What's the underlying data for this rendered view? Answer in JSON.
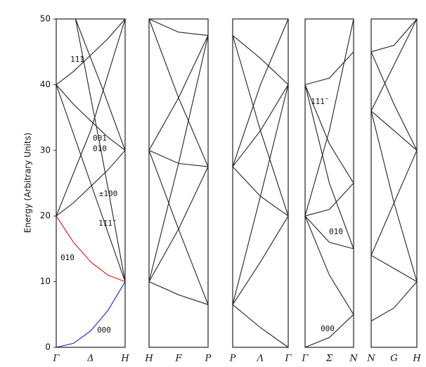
{
  "chart_data": {
    "type": "line",
    "ylabel": "Energy (Arbitrary Units)",
    "ylim": [
      0,
      50
    ],
    "yticks": [
      0,
      10,
      20,
      30,
      40,
      50
    ],
    "panels": [
      {
        "points": [
          "Γ",
          "Δ",
          "H"
        ],
        "annotations": [
          "1̄11",
          "001",
          "010",
          "±100",
          "1̄11̄",
          "01̄0",
          "000"
        ],
        "curves": [
          {
            "color": "#1a1acc",
            "x": [
              0,
              0.25,
              0.5,
              0.75,
              1
            ],
            "values": [
              0,
              0.6,
              2.5,
              5.6,
              10
            ]
          },
          {
            "color": "#dd1111",
            "x": [
              0,
              0.25,
              0.5,
              0.75,
              1
            ],
            "values": [
              20,
              16,
              13,
              11,
              10
            ]
          },
          {
            "color": "#222222",
            "x": [
              0,
              0.25,
              0.5,
              0.75,
              1
            ],
            "values": [
              20,
              22,
              24.5,
              27,
              30
            ]
          },
          {
            "color": "#222222",
            "x": [
              0,
              0.25,
              0.5,
              0.75,
              1
            ],
            "values": [
              40,
              37,
              34.5,
              32,
              30
            ]
          },
          {
            "color": "#222222",
            "x": [
              0,
              0.25,
              0.5,
              0.75,
              1
            ],
            "values": [
              40,
              42,
              44.5,
              47,
              50
            ]
          },
          {
            "color": "#222222",
            "x": [
              0,
              0.5,
              1
            ],
            "values": [
              40,
              25,
              10
            ]
          },
          {
            "color": "#222222",
            "x": [
              0,
              0.5,
              1
            ],
            "values": [
              20,
              33,
              50
            ]
          },
          {
            "color": "#222222",
            "x": [
              0.28,
              0.65,
              1
            ],
            "values": [
              50,
              40,
              30
            ]
          },
          {
            "color": "#222222",
            "x": [
              0.28,
              0.65,
              1
            ],
            "values": [
              50,
              30,
              10
            ]
          }
        ]
      },
      {
        "points": [
          "H",
          "F",
          "P"
        ],
        "annotations": [],
        "curves": [
          {
            "color": "#222222",
            "x": [
              0,
              0.5,
              1
            ],
            "values": [
              10,
              18,
              27.5
            ]
          },
          {
            "color": "#222222",
            "x": [
              0,
              0.5,
              1
            ],
            "values": [
              10,
              8,
              6.5
            ]
          },
          {
            "color": "#222222",
            "x": [
              0,
              0.5,
              1
            ],
            "values": [
              30,
              18,
              6.5
            ]
          },
          {
            "color": "#222222",
            "x": [
              0,
              0.5,
              1
            ],
            "values": [
              30,
              28,
              27.5
            ]
          },
          {
            "color": "#222222",
            "x": [
              0,
              0.5,
              1
            ],
            "values": [
              30,
              38,
              47.5
            ]
          },
          {
            "color": "#222222",
            "x": [
              0,
              0.5,
              1
            ],
            "values": [
              50,
              48,
              47.5
            ]
          },
          {
            "color": "#222222",
            "x": [
              0,
              0.5,
              1
            ],
            "values": [
              50,
              38,
              27.5
            ]
          },
          {
            "color": "#222222",
            "x": [
              0,
              0.5,
              1
            ],
            "values": [
              10,
              28,
              47.5
            ]
          }
        ]
      },
      {
        "points": [
          "P",
          "Λ",
          "Γ"
        ],
        "annotations": [],
        "curves": [
          {
            "color": "#222222",
            "x": [
              0,
              0.5,
              1
            ],
            "values": [
              6.5,
              3,
              0
            ]
          },
          {
            "color": "#222222",
            "x": [
              0,
              0.5,
              1
            ],
            "values": [
              6.5,
              13,
              20
            ]
          },
          {
            "color": "#222222",
            "x": [
              0,
              0.5,
              1
            ],
            "values": [
              27.5,
              23,
              20
            ]
          },
          {
            "color": "#222222",
            "x": [
              0,
              0.5,
              1
            ],
            "values": [
              27.5,
              33,
              40
            ]
          },
          {
            "color": "#222222",
            "x": [
              0,
              0.5,
              1
            ],
            "values": [
              47.5,
              33,
              20
            ]
          },
          {
            "color": "#222222",
            "x": [
              0,
              0.5,
              1
            ],
            "values": [
              6.5,
              23,
              40
            ]
          },
          {
            "color": "#222222",
            "x": [
              0,
              0.5,
              1
            ],
            "values": [
              27.5,
              40,
              50
            ]
          },
          {
            "color": "#222222",
            "x": [
              0,
              0.5,
              1
            ],
            "values": [
              47.5,
              44,
              40
            ]
          }
        ]
      },
      {
        "points": [
          "Γ",
          "Σ",
          "N"
        ],
        "annotations": [
          "1̄11̄",
          "01̄0",
          "000"
        ],
        "curves": [
          {
            "color": "#222222",
            "x": [
              0,
              0.5,
              1
            ],
            "values": [
              0,
              1.5,
              5
            ]
          },
          {
            "color": "#222222",
            "x": [
              0,
              0.5,
              1
            ],
            "values": [
              20,
              11,
              5
            ]
          },
          {
            "color": "#222222",
            "x": [
              0,
              0.5,
              1
            ],
            "values": [
              20,
              16,
              15
            ]
          },
          {
            "color": "#222222",
            "x": [
              0,
              0.5,
              1
            ],
            "values": [
              20,
              21,
              25
            ]
          },
          {
            "color": "#222222",
            "x": [
              0,
              0.5,
              1
            ],
            "values": [
              40,
              25,
              15
            ]
          },
          {
            "color": "#222222",
            "x": [
              0,
              0.5,
              1
            ],
            "values": [
              40,
              31,
              25
            ]
          },
          {
            "color": "#222222",
            "x": [
              0,
              0.5,
              1
            ],
            "values": [
              40,
              41,
              45
            ]
          },
          {
            "color": "#222222",
            "x": [
              0,
              0.5,
              1
            ],
            "values": [
              20,
              33,
              50
            ]
          }
        ]
      },
      {
        "points": [
          "N",
          "G",
          "H"
        ],
        "annotations": [],
        "curves": [
          {
            "color": "#222222",
            "x": [
              0,
              0.5,
              1
            ],
            "values": [
              4,
              6,
              10
            ]
          },
          {
            "color": "#222222",
            "x": [
              0,
              0.5,
              1
            ],
            "values": [
              14,
              12,
              10
            ]
          },
          {
            "color": "#222222",
            "x": [
              0,
              0.5,
              1
            ],
            "values": [
              14,
              22,
              30
            ]
          },
          {
            "color": "#222222",
            "x": [
              0,
              0.5,
              1
            ],
            "values": [
              36,
              22,
              10
            ]
          },
          {
            "color": "#222222",
            "x": [
              0,
              0.5,
              1
            ],
            "values": [
              36,
              33,
              30
            ]
          },
          {
            "color": "#222222",
            "x": [
              0,
              0.5,
              1
            ],
            "values": [
              36,
              43,
              50
            ]
          },
          {
            "color": "#222222",
            "x": [
              0,
              0.5,
              1
            ],
            "values": [
              45,
              46,
              50
            ]
          },
          {
            "color": "#222222",
            "x": [
              0,
              0.5,
              1
            ],
            "values": [
              45,
              37,
              30
            ]
          }
        ]
      }
    ]
  }
}
